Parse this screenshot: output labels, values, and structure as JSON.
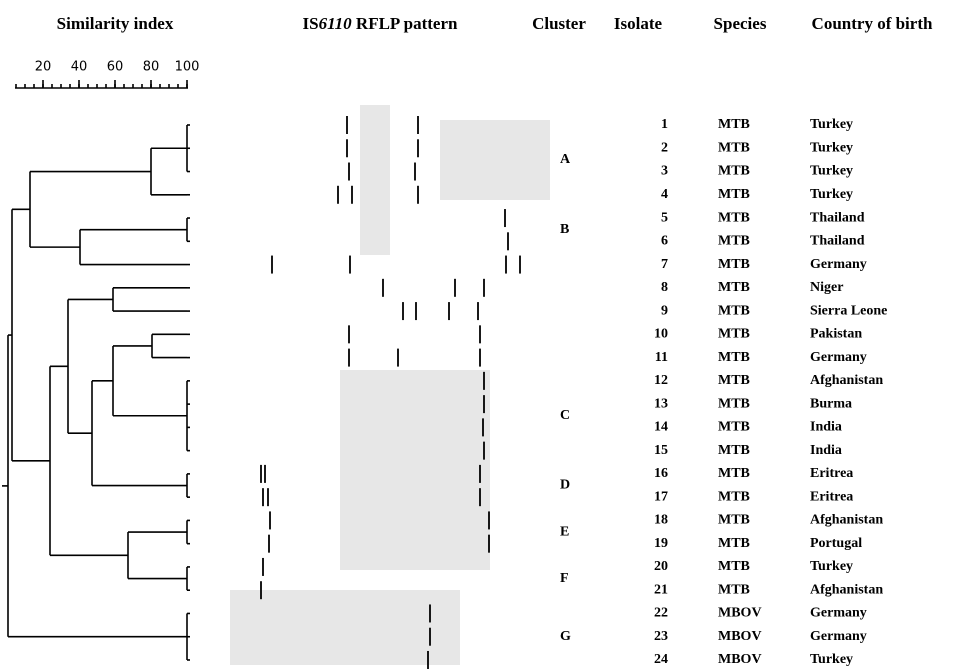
{
  "header": {
    "similarity": "Similarity index",
    "rflp": {
      "prefix": "IS",
      "italic": "6110",
      "suffix": " RFLP pattern"
    },
    "cluster": "Cluster",
    "isolate": "Isolate",
    "species": "Species",
    "country": "Country of birth"
  },
  "scale": {
    "ticks": [
      20,
      40,
      60,
      80,
      100
    ]
  },
  "clusters": [
    "A",
    "B",
    "C",
    "D",
    "E",
    "F",
    "G"
  ],
  "rows": [
    {
      "isolate": 1,
      "species": "MTB",
      "country": "Turkey"
    },
    {
      "isolate": 2,
      "species": "MTB",
      "country": "Turkey"
    },
    {
      "isolate": 3,
      "species": "MTB",
      "country": "Turkey"
    },
    {
      "isolate": 4,
      "species": "MTB",
      "country": "Turkey"
    },
    {
      "isolate": 5,
      "species": "MTB",
      "country": "Thailand"
    },
    {
      "isolate": 6,
      "species": "MTB",
      "country": "Thailand"
    },
    {
      "isolate": 7,
      "species": "MTB",
      "country": "Germany"
    },
    {
      "isolate": 8,
      "species": "MTB",
      "country": "Niger"
    },
    {
      "isolate": 9,
      "species": "MTB",
      "country": "Sierra Leone"
    },
    {
      "isolate": 10,
      "species": "MTB",
      "country": "Pakistan"
    },
    {
      "isolate": 11,
      "species": "MTB",
      "country": "Germany"
    },
    {
      "isolate": 12,
      "species": "MTB",
      "country": "Afghanistan"
    },
    {
      "isolate": 13,
      "species": "MTB",
      "country": "Burma"
    },
    {
      "isolate": 14,
      "species": "MTB",
      "country": "India"
    },
    {
      "isolate": 15,
      "species": "MTB",
      "country": "India"
    },
    {
      "isolate": 16,
      "species": "MTB",
      "country": "Eritrea"
    },
    {
      "isolate": 17,
      "species": "MTB",
      "country": "Eritrea"
    },
    {
      "isolate": 18,
      "species": "MTB",
      "country": "Afghanistan"
    },
    {
      "isolate": 19,
      "species": "MTB",
      "country": "Portugal"
    },
    {
      "isolate": 20,
      "species": "MTB",
      "country": "Turkey"
    },
    {
      "isolate": 21,
      "species": "MTB",
      "country": "Afghanistan"
    },
    {
      "isolate": 22,
      "species": "MBOV",
      "country": "Germany"
    },
    {
      "isolate": 23,
      "species": "MBOV",
      "country": "Germany"
    },
    {
      "isolate": 24,
      "species": "MBOV",
      "country": "Turkey"
    }
  ]
}
